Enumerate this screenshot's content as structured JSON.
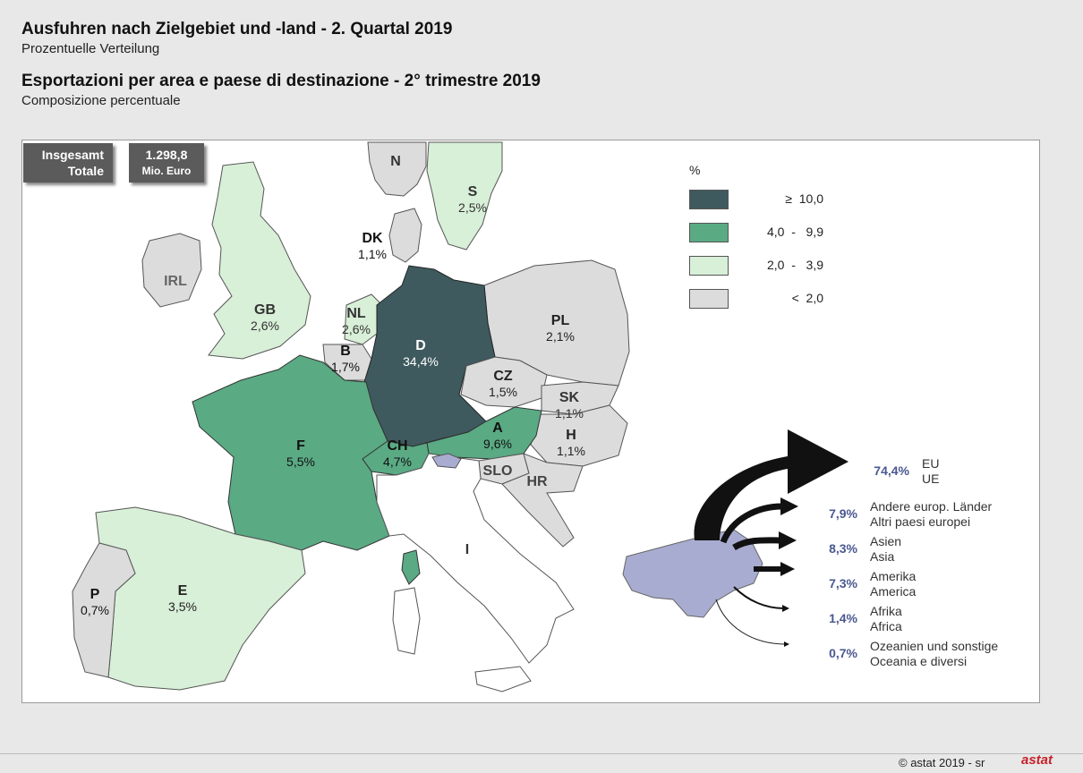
{
  "title_de": "Ausfuhren nach Zielgebiet und -land - 2. Quartal 2019",
  "subtitle_de": "Prozentuelle Verteilung",
  "title_it": "Esportazioni per area e paese di destinazione - 2° trimestre 2019",
  "subtitle_it": "Composizione percentuale",
  "total": {
    "label_de": "Insgesamt",
    "label_it": "Totale",
    "value": "1.298,8",
    "unit": "Mio. Euro"
  },
  "legend": {
    "unit": "%",
    "classes": [
      {
        "label": "≥  10,0",
        "color": "#3f5a5e"
      },
      {
        "label": "4,0  -   9,9",
        "color": "#5aaa84"
      },
      {
        "label": "2,0  -   3,9",
        "color": "#d8efd8"
      },
      {
        "label": "<  2,0",
        "color": "#dcdcdc"
      }
    ]
  },
  "countries": [
    {
      "code": "N",
      "value": ""
    },
    {
      "code": "S",
      "value": "2,5%"
    },
    {
      "code": "DK",
      "value": "1,1%"
    },
    {
      "code": "IRL",
      "value": ""
    },
    {
      "code": "GB",
      "value": "2,6%"
    },
    {
      "code": "NL",
      "value": "2,6%"
    },
    {
      "code": "B",
      "value": "1,7%"
    },
    {
      "code": "D",
      "value": "34,4%"
    },
    {
      "code": "PL",
      "value": "2,1%"
    },
    {
      "code": "CZ",
      "value": "1,5%"
    },
    {
      "code": "SK",
      "value": "1,1%"
    },
    {
      "code": "A",
      "value": "9,6%"
    },
    {
      "code": "H",
      "value": "1,1%"
    },
    {
      "code": "F",
      "value": "5,5%"
    },
    {
      "code": "CH",
      "value": "4,7%"
    },
    {
      "code": "SLO",
      "value": ""
    },
    {
      "code": "HR",
      "value": ""
    },
    {
      "code": "I",
      "value": ""
    },
    {
      "code": "E",
      "value": "3,5%"
    },
    {
      "code": "P",
      "value": "0,7%"
    }
  ],
  "flows": [
    {
      "pct": "74,4%",
      "label_de": "EU",
      "label_it": "UE"
    },
    {
      "pct": "7,9%",
      "label_de": "Andere europ. Länder",
      "label_it": "Altri paesi europei"
    },
    {
      "pct": "8,3%",
      "label_de": "Asien",
      "label_it": "Asia"
    },
    {
      "pct": "7,3%",
      "label_de": "Amerika",
      "label_it": "America"
    },
    {
      "pct": "1,4%",
      "label_de": "Afrika",
      "label_it": "Africa"
    },
    {
      "pct": "0,7%",
      "label_de": "Ozeanien und sonstige",
      "label_it": "Oceania e diversi"
    }
  ],
  "footer": {
    "copyright": "©  astat 2019 - sr",
    "logo": "astat"
  },
  "colors": {
    "high": "#3f5a5e",
    "mid": "#5aaa84",
    "low": "#d8efd8",
    "min": "#dcdcdc",
    "region": "#a8acd0",
    "flow": "#111111",
    "pct_text": "#4a5890"
  }
}
